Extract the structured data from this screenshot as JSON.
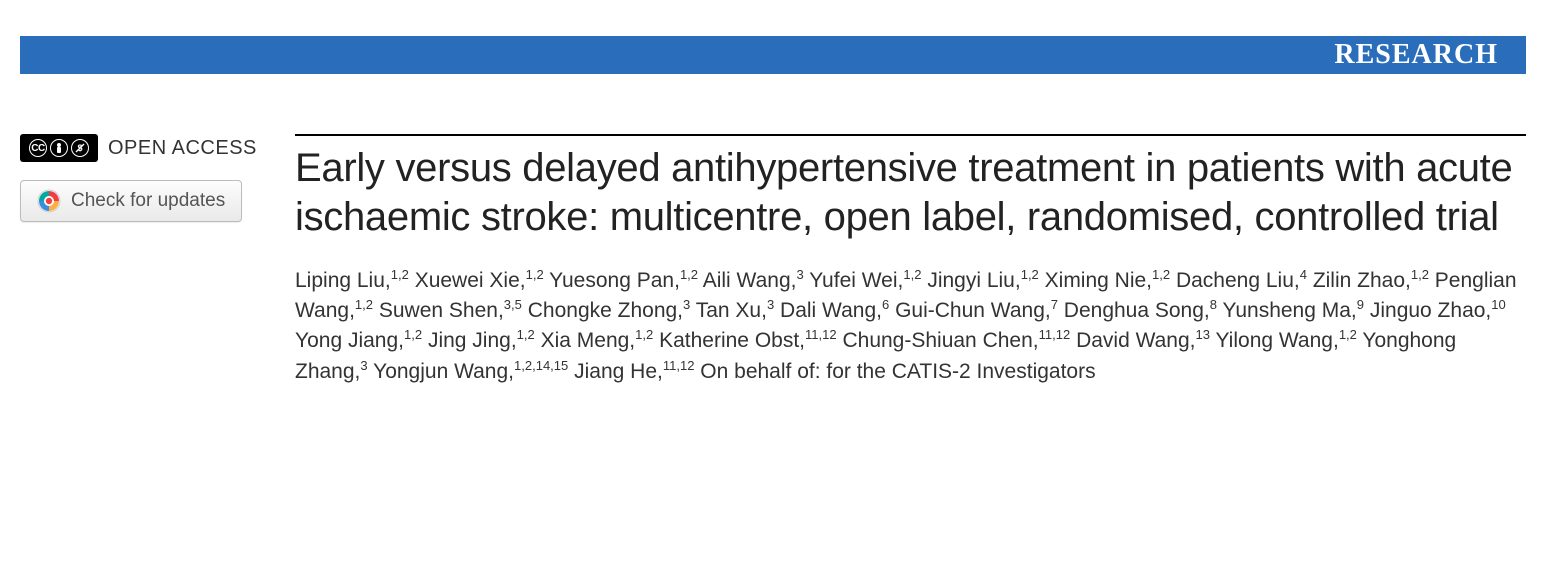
{
  "banner": {
    "label": "RESEARCH",
    "background_color": "#2a6ebb",
    "text_color": "#ffffff"
  },
  "left": {
    "open_access_label": "OPEN ACCESS",
    "cc_icons": [
      "CC",
      "BY",
      "NC"
    ],
    "updates_label": "Check for updates"
  },
  "article": {
    "title": "Early versus delayed antihypertensive treatment in patients with acute ischaemic stroke: multicentre, open label, randomised, controlled trial",
    "authors": [
      {
        "name": "Liping Liu",
        "affil": "1,2"
      },
      {
        "name": "Xuewei Xie",
        "affil": "1,2"
      },
      {
        "name": "Yuesong Pan",
        "affil": "1,2"
      },
      {
        "name": "Aili Wang",
        "affil": "3"
      },
      {
        "name": "Yufei Wei",
        "affil": "1,2"
      },
      {
        "name": "Jingyi Liu",
        "affil": "1,2"
      },
      {
        "name": "Ximing Nie",
        "affil": "1,2"
      },
      {
        "name": "Dacheng Liu",
        "affil": "4"
      },
      {
        "name": "Zilin Zhao",
        "affil": "1,2"
      },
      {
        "name": "Penglian Wang",
        "affil": "1,2"
      },
      {
        "name": "Suwen Shen",
        "affil": "3,5"
      },
      {
        "name": "Chongke Zhong",
        "affil": "3"
      },
      {
        "name": "Tan Xu",
        "affil": "3"
      },
      {
        "name": "Dali Wang",
        "affil": "6"
      },
      {
        "name": "Gui-Chun Wang",
        "affil": "7"
      },
      {
        "name": "Denghua Song",
        "affil": "8"
      },
      {
        "name": "Yunsheng Ma",
        "affil": "9"
      },
      {
        "name": "Jinguo Zhao",
        "affil": "10"
      },
      {
        "name": "Yong Jiang",
        "affil": "1,2"
      },
      {
        "name": "Jing Jing",
        "affil": "1,2"
      },
      {
        "name": "Xia Meng",
        "affil": "1,2"
      },
      {
        "name": "Katherine Obst",
        "affil": "11,12"
      },
      {
        "name": "Chung-Shiuan Chen",
        "affil": "11,12"
      },
      {
        "name": "David Wang",
        "affil": "13"
      },
      {
        "name": "Yilong Wang",
        "affil": "1,2"
      },
      {
        "name": "Yonghong Zhang",
        "affil": "3"
      },
      {
        "name": "Yongjun Wang",
        "affil": "1,2,14,15"
      },
      {
        "name": "Jiang He",
        "affil": "11,12"
      }
    ],
    "trailing": "On behalf of: for the CATIS-2 Investigators"
  },
  "colors": {
    "banner_bg": "#2a6ebb",
    "text": "#333333",
    "title_rule": "#000000",
    "button_border": "#bcbcbc"
  }
}
